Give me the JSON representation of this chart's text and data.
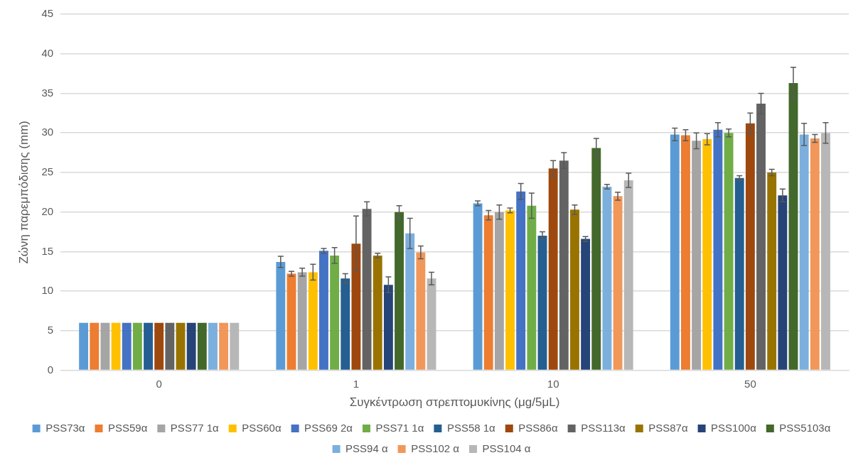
{
  "chart_data": {
    "type": "bar",
    "xlabel": "Συγκέντρωση στρεπτομυκίνης (μg/5μL)",
    "ylabel": "Ζώνη παρεμπόδισης (mm)",
    "categories": [
      "0",
      "1",
      "10",
      "50"
    ],
    "ylim": [
      0,
      45
    ],
    "yticks": [
      0,
      5,
      10,
      15,
      20,
      25,
      30,
      35,
      40,
      45
    ],
    "grid": "y",
    "legend": "bottom",
    "series": [
      {
        "name": "PSS73α",
        "color": "#5b9bd5",
        "values": [
          6,
          13.7,
          21.1,
          29.8
        ],
        "errors": [
          null,
          0.7,
          0.3,
          0.8
        ]
      },
      {
        "name": "PSS59α",
        "color": "#ed7d31",
        "values": [
          6,
          12.2,
          19.6,
          29.7
        ],
        "errors": [
          null,
          0.3,
          0.6,
          0.7
        ]
      },
      {
        "name": "PSS77 1α",
        "color": "#a5a5a5",
        "values": [
          6,
          12.4,
          20.0,
          29.0
        ],
        "errors": [
          null,
          0.5,
          0.9,
          1.0
        ]
      },
      {
        "name": "PSS60α",
        "color": "#ffc000",
        "values": [
          6,
          12.4,
          20.2,
          29.2
        ],
        "errors": [
          null,
          1.0,
          0.3,
          0.7
        ]
      },
      {
        "name": "PSS69 2α",
        "color": "#4472c4",
        "values": [
          6,
          15.1,
          22.6,
          30.4
        ],
        "errors": [
          null,
          0.3,
          1.0,
          0.9
        ]
      },
      {
        "name": "PSS71 1α",
        "color": "#70ad47",
        "values": [
          6,
          14.5,
          20.8,
          30.0
        ],
        "errors": [
          null,
          1.0,
          1.6,
          0.5
        ]
      },
      {
        "name": "PSS58 1α",
        "color": "#255e91",
        "values": [
          6,
          11.6,
          17.0,
          24.3
        ],
        "errors": [
          null,
          0.6,
          0.5,
          0.3
        ]
      },
      {
        "name": "PSS86α",
        "color": "#9e480e",
        "values": [
          6,
          16.0,
          25.5,
          31.2
        ],
        "errors": [
          null,
          3.5,
          1.0,
          1.3
        ]
      },
      {
        "name": "PSS113α",
        "color": "#636363",
        "values": [
          6,
          20.4,
          26.5,
          33.7
        ],
        "errors": [
          null,
          0.9,
          1.0,
          1.3
        ]
      },
      {
        "name": "PSS87α",
        "color": "#997300",
        "values": [
          6,
          14.5,
          20.3,
          25.0
        ],
        "errors": [
          null,
          0.3,
          0.6,
          0.4
        ]
      },
      {
        "name": "PSS100α",
        "color": "#264478",
        "values": [
          6,
          10.8,
          16.6,
          22.1
        ],
        "errors": [
          null,
          1.0,
          0.3,
          0.8
        ]
      },
      {
        "name": "PSS5103α",
        "color": "#43682b",
        "values": [
          6,
          20.0,
          28.1,
          36.3
        ],
        "errors": [
          null,
          0.8,
          1.2,
          2.0
        ]
      },
      {
        "name": "PSS94 α",
        "color": "#7cafdd",
        "values": [
          6,
          17.3,
          23.2,
          29.8
        ],
        "errors": [
          null,
          1.9,
          0.3,
          1.4
        ]
      },
      {
        "name": "PSS102 α",
        "color": "#f1975a",
        "values": [
          6,
          14.9,
          22.0,
          29.3
        ],
        "errors": [
          null,
          0.8,
          0.5,
          0.5
        ]
      },
      {
        "name": "PSS104 α",
        "color": "#b7b7b7",
        "values": [
          6,
          11.6,
          24.0,
          30.0
        ],
        "errors": [
          null,
          0.8,
          0.9,
          1.3
        ]
      }
    ]
  }
}
